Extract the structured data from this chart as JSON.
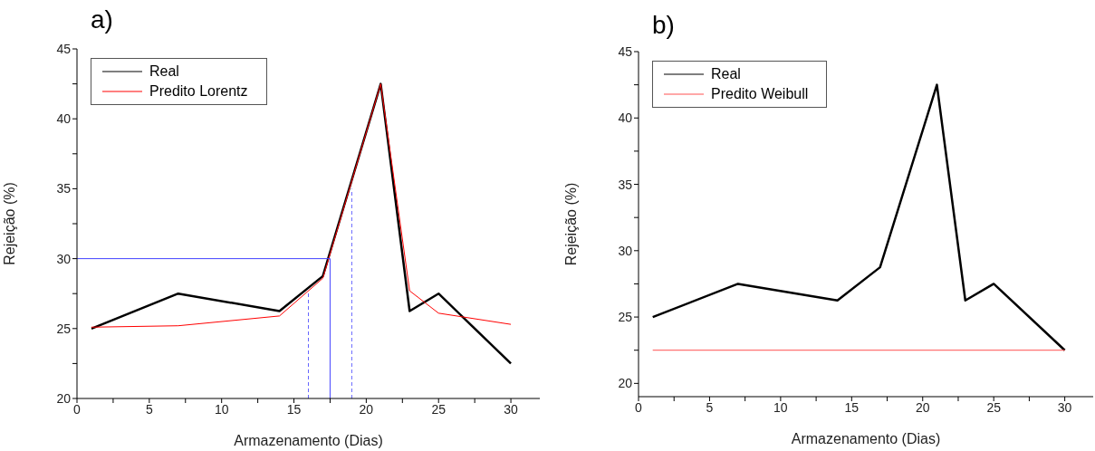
{
  "chart_data": [
    {
      "type": "line",
      "title": "a)",
      "xlabel": "Armazenamento (Dias)",
      "ylabel": "Rejeição (%)",
      "legend": "top left",
      "grid": false,
      "marker": "none",
      "xlim": [
        0,
        32
      ],
      "ylim": [
        20,
        45
      ],
      "xticks": [
        0,
        {
          "value": 2.5,
          "label": null
        },
        5,
        {
          "value": 7.5,
          "label": null
        },
        10,
        {
          "value": 12.5,
          "label": null
        },
        15,
        {
          "value": 17.5,
          "label": null
        },
        20,
        {
          "value": 22.5,
          "label": null
        },
        25,
        {
          "value": 27.5,
          "label": null
        },
        30
      ],
      "yticks": [
        20,
        {
          "value": 22.5,
          "label": null
        },
        25,
        {
          "value": 27.5,
          "label": null
        },
        30,
        {
          "value": 32.5,
          "label": null
        },
        35,
        {
          "value": 37.5,
          "label": null
        },
        40,
        {
          "value": 42.5,
          "label": null
        },
        45
      ],
      "series": [
        {
          "name": "Real",
          "color": "#000000",
          "x": [
            1,
            7,
            14,
            17,
            21,
            23,
            25,
            30
          ],
          "values": [
            25,
            27.5,
            26.25,
            28.75,
            42.5,
            26.25,
            27.5,
            22.5
          ]
        },
        {
          "name": "Predito Lorentz",
          "color": "#ff0000",
          "x": [
            1,
            7,
            14,
            17,
            21,
            23,
            25,
            30
          ],
          "values": [
            25.1,
            25.2,
            25.9,
            28.6,
            42.5,
            27.7,
            26.1,
            25.3
          ]
        },
        {
          "color": "#4444ff",
          "line_style": "solid",
          "x": [
            0,
            17.5,
            17.5
          ],
          "values": [
            30,
            30,
            20
          ]
        },
        {
          "color": "#6666ff",
          "line_style": "dashed",
          "x": [
            16,
            16
          ],
          "values": [
            20,
            27.6
          ]
        },
        {
          "color": "#6666ff",
          "line_style": "dashed",
          "x": [
            19,
            19
          ],
          "values": [
            20,
            35
          ]
        }
      ]
    },
    {
      "type": "line",
      "title": "b)",
      "xlabel": "Armazenamento (Dias)",
      "ylabel": "Rejeição (%)",
      "legend": "top left",
      "grid": false,
      "marker": "none",
      "xlim": [
        0,
        32
      ],
      "ylim": [
        19,
        45
      ],
      "xticks": [
        0,
        {
          "value": 2.5,
          "label": null
        },
        5,
        {
          "value": 7.5,
          "label": null
        },
        10,
        {
          "value": 12.5,
          "label": null
        },
        15,
        {
          "value": 17.5,
          "label": null
        },
        20,
        {
          "value": 22.5,
          "label": null
        },
        25,
        {
          "value": 27.5,
          "label": null
        },
        30
      ],
      "yticks": [
        20,
        {
          "value": 22.5,
          "label": null
        },
        25,
        {
          "value": 27.5,
          "label": null
        },
        30,
        {
          "value": 32.5,
          "label": null
        },
        35,
        {
          "value": 37.5,
          "label": null
        },
        40,
        {
          "value": 42.5,
          "label": null
        },
        45
      ],
      "series": [
        {
          "name": "Real",
          "color": "#000000",
          "x": [
            1,
            7,
            14,
            17,
            21,
            23,
            25,
            30
          ],
          "values": [
            25,
            27.5,
            26.25,
            28.75,
            42.5,
            26.25,
            27.5,
            22.5
          ]
        },
        {
          "name": "Predito Weibull",
          "color": "#ff5050",
          "x": [
            1,
            30
          ],
          "values": [
            22.5,
            22.5
          ]
        }
      ]
    }
  ]
}
